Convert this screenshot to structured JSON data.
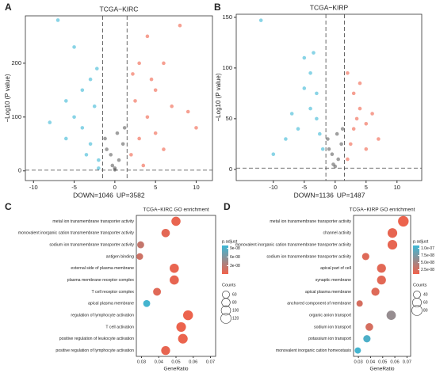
{
  "chart_data": [
    {
      "type": "volcano",
      "panel": "A",
      "title": "TCGA−KIRC",
      "y_label": "−Log10 (P value)",
      "annotations": [
        "DOWN=1046",
        "UP=3582"
      ],
      "xlim": [
        -11,
        12
      ],
      "xticks": [
        -10,
        -5,
        0,
        5,
        10
      ],
      "ylim": [
        -18,
        288
      ],
      "yticks": [
        0,
        100,
        200
      ],
      "vlines": [
        -1.5,
        1.5
      ],
      "hline": 1.3,
      "down_color": "#3bb8d6",
      "up_color": "#f0614a",
      "other_color": "#5f5f5f",
      "x": [
        0,
        0.5,
        -0.5,
        1,
        -1,
        0.3,
        -0.3,
        1.2,
        -1.2,
        0,
        -2,
        -3,
        -4,
        -5,
        -6,
        -7,
        -5,
        -4,
        -2.5,
        -3,
        -6,
        -8,
        -2,
        -3.5,
        -2.2,
        2,
        3,
        4,
        5,
        6,
        8,
        9,
        10,
        3,
        4,
        2.5,
        5,
        7,
        6,
        3.5,
        2.2,
        4.5
      ],
      "y": [
        5,
        20,
        30,
        50,
        40,
        70,
        10,
        80,
        60,
        2,
        20,
        50,
        80,
        100,
        130,
        280,
        230,
        150,
        120,
        170,
        60,
        90,
        5,
        30,
        190,
        30,
        60,
        100,
        150,
        200,
        270,
        110,
        80,
        200,
        250,
        130,
        70,
        120,
        40,
        10,
        180,
        170
      ]
    },
    {
      "type": "volcano",
      "panel": "B",
      "title": "TCGA−KIRP",
      "y_label": "−Log10 (P value)",
      "annotations": [
        "DOWN=1136",
        "UP=1487"
      ],
      "xlim": [
        -16,
        14
      ],
      "xticks": [
        -10,
        -5,
        0,
        5,
        10
      ],
      "ylim": [
        -11,
        153
      ],
      "yticks": [
        0,
        50,
        100,
        150
      ],
      "vlines": [
        -1.5,
        1.5
      ],
      "hline": 1.3,
      "down_color": "#3bb8d6",
      "up_color": "#f0614a",
      "other_color": "#5f5f5f",
      "x": [
        0,
        0.5,
        -0.5,
        1,
        -1,
        0.3,
        -0.3,
        1.2,
        -1.2,
        -12,
        -5,
        -4,
        -3,
        -3,
        -6,
        -8,
        -2,
        -4,
        -5,
        -10,
        -2.5,
        -7,
        -3.5,
        2,
        3,
        4,
        5,
        6,
        7,
        3,
        4,
        2.5,
        5,
        2,
        3.5
      ],
      "y": [
        3,
        10,
        15,
        25,
        20,
        35,
        5,
        40,
        30,
        147,
        110,
        95,
        75,
        50,
        40,
        30,
        20,
        60,
        80,
        15,
        35,
        55,
        115,
        10,
        40,
        60,
        45,
        55,
        30,
        75,
        85,
        25,
        20,
        95,
        50
      ]
    },
    {
      "type": "dot",
      "panel": "C",
      "title": "TCGA−KIRC GO enrichment",
      "x_label": "GeneRatio",
      "categories": [
        "metal ion transmembrane transporter activity",
        "monovalent inorganic cation transmembrane transporter activity",
        "sodium ion transmembrane transporter activity",
        "antigen binding",
        "external side of plasma membrane",
        "plasma membrane receptor complex",
        "T cell receptor complex",
        "apical plasma membrane",
        "regulation of lymphocyte activation",
        "T cell activation",
        "positive regulation of leukocyte activation",
        "positive regulation of lymphocyte activation"
      ],
      "values": [
        0.05,
        0.044,
        0.0295,
        0.029,
        0.049,
        0.049,
        0.039,
        0.033,
        0.057,
        0.053,
        0.054,
        0.044
      ],
      "sizes": [
        95,
        80,
        55,
        50,
        95,
        95,
        70,
        55,
        110,
        105,
        105,
        90
      ],
      "p_adjust": [
        5e-09,
        8e-09,
        2.5e-08,
        2e-08,
        5e-09,
        6e-09,
        1e-08,
        9.5e-08,
        3e-09,
        3e-09,
        4e-09,
        6e-09
      ],
      "xlim": [
        0.027,
        0.073
      ],
      "xticks": [
        0.03,
        0.04,
        0.05,
        0.06,
        0.07
      ],
      "color_legend": {
        "title": "p.adjust",
        "range": [
          1e-09,
          1e-07
        ],
        "low_color": "#f0614a",
        "high_color": "#3bb8d6",
        "ticks": [
          {
            "value": 9e-08,
            "label": "9e-08"
          },
          {
            "value": 6e-08,
            "label": "6e-08"
          },
          {
            "value": 3e-08,
            "label": "3e-08"
          }
        ]
      },
      "size_legend": {
        "title": "Counts",
        "values": [
          60,
          80,
          100,
          120
        ]
      }
    },
    {
      "type": "dot",
      "panel": "D",
      "title": "TCGA−KIRP GO enrichment",
      "x_label": "GeneRatio",
      "categories": [
        "metal ion transmembrane transporter activity",
        "channel activity",
        "monovalent inorganic cation transmembrane transporter activity",
        "sodium ion transmembrane transporter activity",
        "apical part of cell",
        "synaptic membrane",
        "apical plasma membrane",
        "anchored component of membrane",
        "organic anion transport",
        "sodium ion transport",
        "potassium ion transport",
        "monovalent inorganic cation homeostasis"
      ],
      "values": [
        0.067,
        0.058,
        0.058,
        0.036,
        0.049,
        0.049,
        0.044,
        0.031,
        0.057,
        0.039,
        0.037,
        0.0295
      ],
      "sizes": [
        85,
        70,
        70,
        40,
        60,
        60,
        50,
        30,
        65,
        45,
        40,
        30
      ],
      "p_adjust": [
        1.2e-08,
        1.5e-08,
        1.5e-08,
        2e-08,
        1.8e-08,
        1.8e-08,
        2e-08,
        2.5e-08,
        6e-08,
        2.5e-08,
        1e-07,
        1.05e-07
      ],
      "xlim": [
        0.026,
        0.073
      ],
      "xticks": [
        0.03,
        0.04,
        0.05,
        0.06,
        0.07
      ],
      "color_legend": {
        "title": "p.adjust",
        "range": [
          1e-08,
          1.1e-07
        ],
        "low_color": "#f0614a",
        "high_color": "#3bb8d6",
        "ticks": [
          {
            "value": 1e-07,
            "label": "1.0e-07"
          },
          {
            "value": 7.5e-08,
            "label": "7.5e-08"
          },
          {
            "value": 5e-08,
            "label": "5.0e-08"
          },
          {
            "value": 2.5e-08,
            "label": "2.5e-08"
          }
        ]
      },
      "size_legend": {
        "title": "Counts",
        "values": [
          40,
          60,
          80
        ]
      }
    }
  ]
}
